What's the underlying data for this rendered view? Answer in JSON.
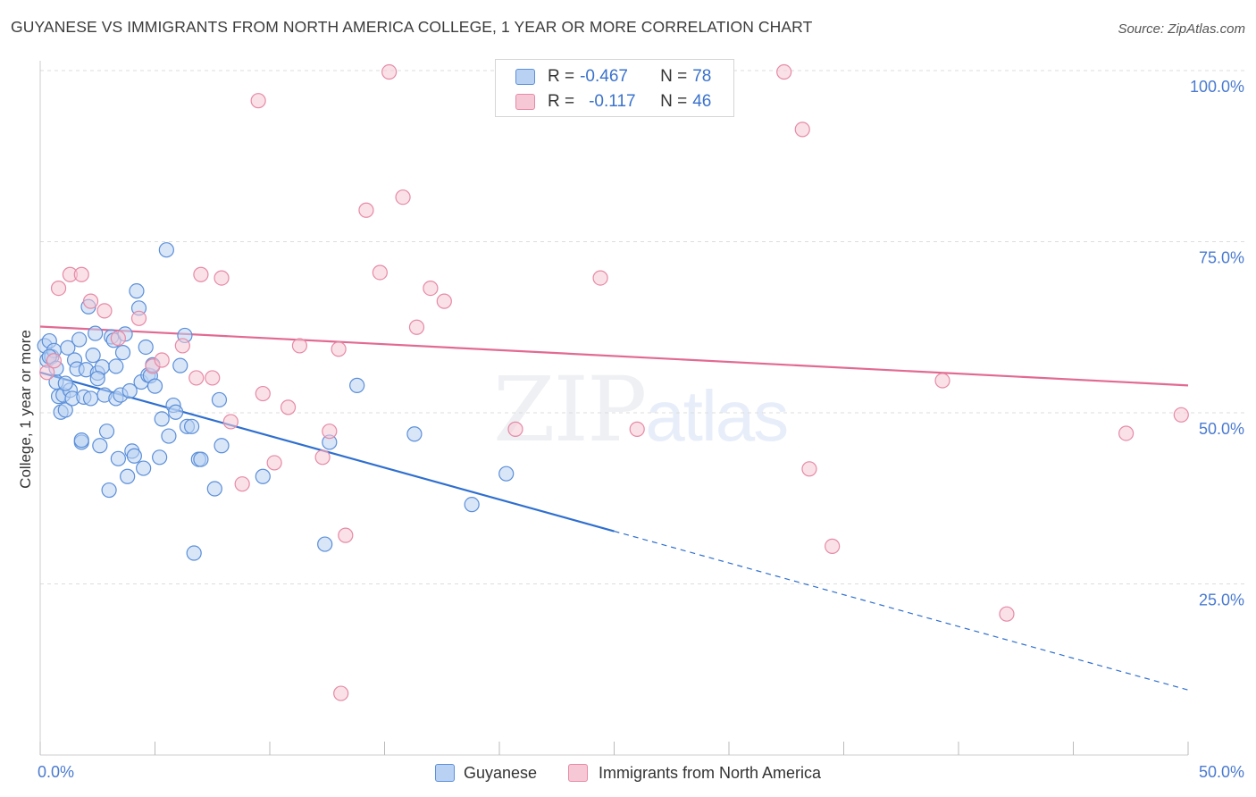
{
  "title": "GUYANESE VS IMMIGRANTS FROM NORTH AMERICA COLLEGE, 1 YEAR OR MORE CORRELATION CHART",
  "source": "Source: ZipAtlas.com",
  "watermark": {
    "zip": "ZIP",
    "atlas": "atlas"
  },
  "colors": {
    "guyanese": "#5b8fd9",
    "guyanese_fill": "#b9d2f3",
    "guyanese_line": "#2f6fcf",
    "immigrants": "#e68aa6",
    "immigrants_fill": "#f6c8d6",
    "immigrants_line": "#e26a92",
    "tick_text": "#4a7bd0"
  },
  "legend_top": {
    "rows": [
      {
        "r_label": "R =",
        "r_value": "-0.467",
        "n_label": "N =",
        "n_value": "78"
      },
      {
        "r_label": "R =",
        "r_value": "-0.117",
        "n_label": "N =",
        "n_value": "46"
      }
    ]
  },
  "legend_bottom": [
    "Guyanese",
    "Immigrants from North America"
  ],
  "chart_data": {
    "type": "scatter",
    "title": "GUYANESE VS IMMIGRANTS FROM NORTH AMERICA COLLEGE, 1 YEAR OR MORE CORRELATION CHART",
    "xlabel": "",
    "ylabel": "College, 1 year or more",
    "xlim": [
      0,
      50
    ],
    "ylim": [
      0,
      100
    ],
    "x_tick_labels": [
      "0.0%",
      "50.0%"
    ],
    "y_tick_labels": [
      "25.0%",
      "50.0%",
      "75.0%",
      "100.0%"
    ],
    "y_ticks": [
      25,
      50,
      75,
      100
    ],
    "series": [
      {
        "name": "Guyanese",
        "r": -0.467,
        "n": 78,
        "trend": {
          "x0": 0,
          "y0": 55.9,
          "x1": 25,
          "y1": 32.7,
          "dashed_to_x": 50,
          "dashed_to_y": 9.5
        },
        "points": [
          [
            0.2,
            59.8
          ],
          [
            0.3,
            57.7
          ],
          [
            0.4,
            60.5
          ],
          [
            0.5,
            58.2
          ],
          [
            0.6,
            59.1
          ],
          [
            0.7,
            54.5
          ],
          [
            0.8,
            52.4
          ],
          [
            0.9,
            50.1
          ],
          [
            1.0,
            52.6
          ],
          [
            1.1,
            50.4
          ],
          [
            1.2,
            59.5
          ],
          [
            1.3,
            53.3
          ],
          [
            1.4,
            52.1
          ],
          [
            1.5,
            57.7
          ],
          [
            1.6,
            56.4
          ],
          [
            1.7,
            60.7
          ],
          [
            1.8,
            45.7
          ],
          [
            1.9,
            52.3
          ],
          [
            2.0,
            56.3
          ],
          [
            2.1,
            65.5
          ],
          [
            2.2,
            52.1
          ],
          [
            2.3,
            58.4
          ],
          [
            2.4,
            61.6
          ],
          [
            2.5,
            55.8
          ],
          [
            2.6,
            45.2
          ],
          [
            2.7,
            56.7
          ],
          [
            2.8,
            52.6
          ],
          [
            2.9,
            47.3
          ],
          [
            3.0,
            38.7
          ],
          [
            3.1,
            61.1
          ],
          [
            3.2,
            60.6
          ],
          [
            3.3,
            52.1
          ],
          [
            3.4,
            43.3
          ],
          [
            3.5,
            52.6
          ],
          [
            3.6,
            58.8
          ],
          [
            3.7,
            61.5
          ],
          [
            3.8,
            40.7
          ],
          [
            3.9,
            53.2
          ],
          [
            4.0,
            44.4
          ],
          [
            4.1,
            43.7
          ],
          [
            4.2,
            67.8
          ],
          [
            4.3,
            65.3
          ],
          [
            4.4,
            54.5
          ],
          [
            4.5,
            41.9
          ],
          [
            4.6,
            59.6
          ],
          [
            4.7,
            55.5
          ],
          [
            4.8,
            55.4
          ],
          [
            5.0,
            53.9
          ],
          [
            5.2,
            43.5
          ],
          [
            5.3,
            49.1
          ],
          [
            5.5,
            73.8
          ],
          [
            5.6,
            46.6
          ],
          [
            5.8,
            51.1
          ],
          [
            5.9,
            50.1
          ],
          [
            6.1,
            56.9
          ],
          [
            6.3,
            61.3
          ],
          [
            6.4,
            48.0
          ],
          [
            6.6,
            48.0
          ],
          [
            6.7,
            29.5
          ],
          [
            6.9,
            43.2
          ],
          [
            7.0,
            43.2
          ],
          [
            7.6,
            38.9
          ],
          [
            7.8,
            51.9
          ],
          [
            7.9,
            45.2
          ],
          [
            9.7,
            40.7
          ],
          [
            12.4,
            30.8
          ],
          [
            12.6,
            45.7
          ],
          [
            13.8,
            54.0
          ],
          [
            16.3,
            46.9
          ],
          [
            18.8,
            36.6
          ],
          [
            20.3,
            41.1
          ],
          [
            0.4,
            58.2
          ],
          [
            1.1,
            54.3
          ],
          [
            2.5,
            55.0
          ],
          [
            3.3,
            56.8
          ],
          [
            4.9,
            57.0
          ],
          [
            1.8,
            46.0
          ],
          [
            0.7,
            56.5
          ]
        ]
      },
      {
        "name": "Immigrants from North America",
        "r": -0.117,
        "n": 46,
        "trend": {
          "x0": 0,
          "y0": 62.6,
          "x1": 50,
          "y1": 54.0
        },
        "points": [
          [
            0.3,
            55.9
          ],
          [
            0.6,
            57.6
          ],
          [
            0.8,
            68.2
          ],
          [
            1.3,
            70.2
          ],
          [
            1.8,
            70.2
          ],
          [
            2.2,
            66.3
          ],
          [
            2.8,
            64.9
          ],
          [
            3.4,
            60.9
          ],
          [
            4.3,
            63.8
          ],
          [
            4.9,
            56.8
          ],
          [
            5.3,
            57.7
          ],
          [
            6.2,
            59.8
          ],
          [
            6.8,
            55.1
          ],
          [
            7.0,
            70.2
          ],
          [
            7.5,
            55.1
          ],
          [
            7.9,
            69.7
          ],
          [
            8.3,
            48.7
          ],
          [
            8.8,
            39.6
          ],
          [
            9.5,
            95.6
          ],
          [
            9.7,
            52.8
          ],
          [
            10.2,
            42.7
          ],
          [
            10.8,
            50.8
          ],
          [
            11.3,
            59.8
          ],
          [
            12.3,
            43.5
          ],
          [
            12.6,
            47.3
          ],
          [
            13.0,
            59.3
          ],
          [
            13.1,
            9.0
          ],
          [
            13.3,
            32.1
          ],
          [
            14.2,
            79.6
          ],
          [
            14.8,
            70.5
          ],
          [
            15.2,
            99.8
          ],
          [
            15.8,
            81.5
          ],
          [
            16.4,
            62.5
          ],
          [
            17.0,
            68.2
          ],
          [
            17.6,
            66.3
          ],
          [
            20.7,
            47.6
          ],
          [
            24.4,
            69.7
          ],
          [
            26.0,
            47.6
          ],
          [
            32.4,
            99.8
          ],
          [
            33.2,
            91.4
          ],
          [
            33.5,
            41.8
          ],
          [
            34.5,
            30.5
          ],
          [
            39.3,
            54.7
          ],
          [
            42.1,
            20.6
          ],
          [
            47.3,
            47.0
          ],
          [
            49.7,
            49.7
          ]
        ]
      }
    ]
  }
}
